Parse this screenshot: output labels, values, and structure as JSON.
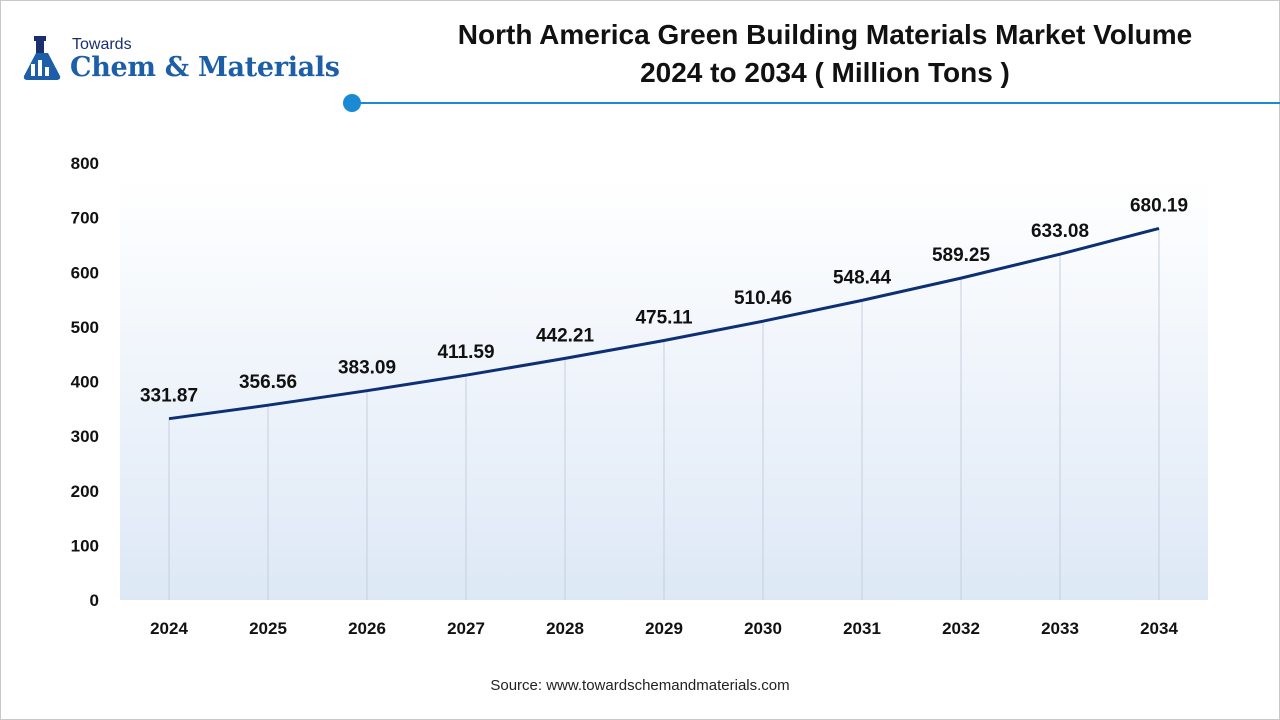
{
  "header": {
    "logo_small": "Towards",
    "logo_big": "Chem & Materials",
    "title_line1": "North America Green Building Materials Market Volume",
    "title_line2": "2024 to 2034 ( Million Tons )"
  },
  "footer": {
    "source": "Source: www.towardschemandmaterials.com"
  },
  "colors": {
    "line": "#0d2f73",
    "accent": "#1a8ad4",
    "brand": "#1c5fa8"
  },
  "chart_data": {
    "type": "line",
    "categories": [
      "2024",
      "2025",
      "2026",
      "2027",
      "2028",
      "2029",
      "2030",
      "2031",
      "2032",
      "2033",
      "2034"
    ],
    "values": [
      331.87,
      356.56,
      383.09,
      411.59,
      442.21,
      475.11,
      510.46,
      548.44,
      589.25,
      633.08,
      680.19
    ],
    "value_labels": [
      "331.87",
      "356.56",
      "383.09",
      "411.59",
      "442.21",
      "475.11",
      "510.46",
      "548.44",
      "589.25",
      "633.08",
      "680.19"
    ],
    "ylim": [
      0,
      800
    ],
    "yticks": [
      0,
      100,
      200,
      300,
      400,
      500,
      600,
      700,
      800
    ],
    "grid": "vertical",
    "legend": "none"
  }
}
